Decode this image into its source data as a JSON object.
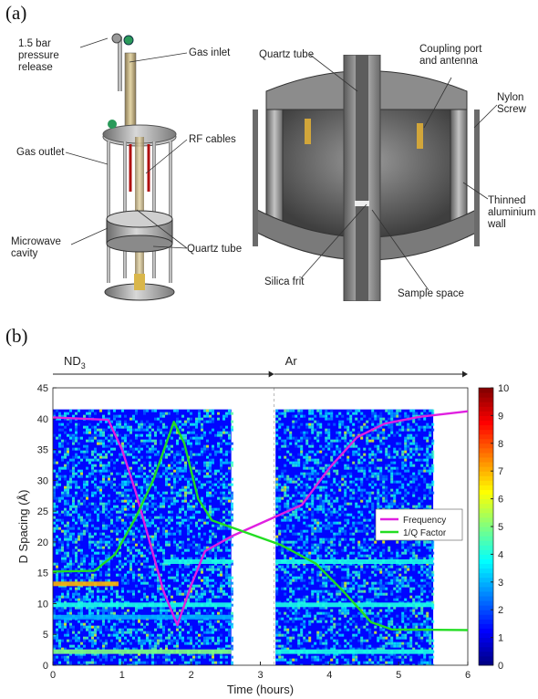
{
  "panel_a": {
    "label": "(a)",
    "callouts": {
      "pressure_release": "1.5 bar pressure release",
      "gas_inlet": "Gas inlet",
      "rf_cables": "RF cables",
      "gas_outlet": "Gas outlet",
      "microwave_cavity": "Microwave cavity",
      "quartz_tube_left": "Quartz tube",
      "quartz_tube_right": "Quartz tube",
      "coupling_port": "Coupling port and antenna",
      "nylon_screw": "Nylon Screw",
      "thinned_wall": "Thinned aluminium wall",
      "silica_frit": "Silica frit",
      "sample_space": "Sample space"
    }
  },
  "panel_b": {
    "label": "(b)",
    "gas_phases": [
      {
        "label": "ND",
        "subscript": "3",
        "x_start": 0,
        "x_end": 3.2
      },
      {
        "label": "Ar",
        "x_start": 3.2,
        "x_end": 6
      }
    ]
  },
  "chart_data": {
    "type": "heatmap",
    "xlabel": "Time (hours)",
    "ylabel": "D Spacing (Å)",
    "xlim": [
      0,
      6
    ],
    "ylim": [
      0,
      45
    ],
    "x_ticks": [
      0,
      1,
      2,
      3,
      4,
      5,
      6
    ],
    "y_ticks": [
      0,
      5,
      10,
      15,
      20,
      25,
      30,
      35,
      40,
      45
    ],
    "heatmap_blocks": [
      {
        "x": [
          0,
          2.58
        ],
        "y": [
          0,
          41.5
        ]
      },
      {
        "x": [
          3.22,
          5.5
        ],
        "y": [
          0,
          41.5
        ]
      }
    ],
    "bright_bands": [
      {
        "d": 13.2,
        "x": [
          0,
          0.95
        ],
        "intensity": 7
      },
      {
        "d": 9.8,
        "x": [
          0,
          2.58
        ],
        "intensity": 4
      },
      {
        "d": 9.8,
        "x": [
          3.22,
          5.5
        ],
        "intensity": 4
      },
      {
        "d": 16.8,
        "x": [
          1.6,
          2.58
        ],
        "intensity": 4
      },
      {
        "d": 16.8,
        "x": [
          3.22,
          5.5
        ],
        "intensity": 4
      },
      {
        "d": 7.8,
        "x": [
          0,
          2.58
        ],
        "intensity": 3
      },
      {
        "d": 2.2,
        "x": [
          0,
          2.58
        ],
        "intensity": 5
      },
      {
        "d": 2.2,
        "x": [
          3.22,
          5.5
        ],
        "intensity": 4
      }
    ],
    "colorbar": {
      "min": 0,
      "max": 10,
      "ticks": [
        0,
        1,
        2,
        3,
        4,
        5,
        6,
        7,
        8,
        9,
        10
      ]
    },
    "legend_position": "right",
    "series": [
      {
        "name": "Frequency",
        "color": "#e020e0",
        "points": [
          [
            0,
            40.2
          ],
          [
            0.8,
            39.8
          ],
          [
            1.0,
            35
          ],
          [
            1.2,
            28
          ],
          [
            1.4,
            20
          ],
          [
            1.6,
            12
          ],
          [
            1.8,
            6.5
          ],
          [
            2.0,
            13
          ],
          [
            2.2,
            18.5
          ],
          [
            2.6,
            21
          ],
          [
            3.0,
            23
          ],
          [
            3.6,
            26
          ],
          [
            4.0,
            32
          ],
          [
            4.4,
            37
          ],
          [
            4.8,
            39.2
          ],
          [
            5.3,
            40.3
          ],
          [
            6,
            41.2
          ]
        ]
      },
      {
        "name": "1/Q Factor",
        "color": "#22dd22",
        "points": [
          [
            0,
            15.2
          ],
          [
            0.6,
            15.3
          ],
          [
            0.9,
            18
          ],
          [
            1.2,
            24
          ],
          [
            1.45,
            30
          ],
          [
            1.75,
            39.5
          ],
          [
            1.9,
            36
          ],
          [
            2.1,
            27
          ],
          [
            2.3,
            23.5
          ],
          [
            2.8,
            21.5
          ],
          [
            3.3,
            19.5
          ],
          [
            3.8,
            16.5
          ],
          [
            4.2,
            12
          ],
          [
            4.6,
            7
          ],
          [
            4.9,
            5.8
          ],
          [
            6,
            5.7
          ]
        ]
      }
    ]
  }
}
